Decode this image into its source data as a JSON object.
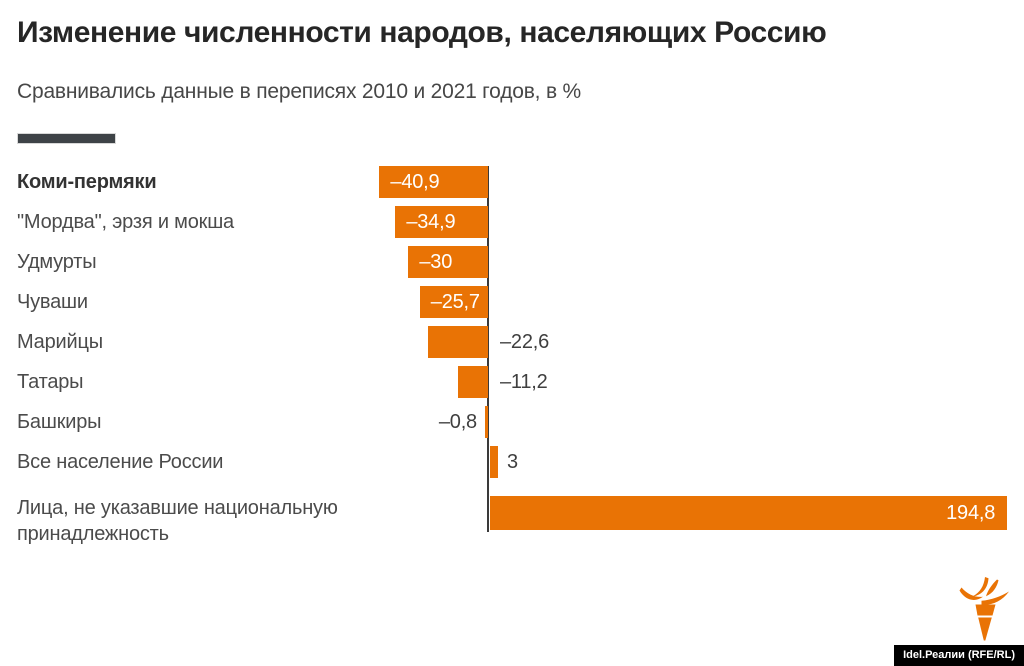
{
  "header": {
    "title": "Изменение численности народов, населяющих Россию",
    "subtitle": "Сравнивались данные в переписях 2010 и 2021 годов, в %"
  },
  "legend": {
    "swatch_color": "#3E4347"
  },
  "chart_data": {
    "type": "bar",
    "orientation": "horizontal",
    "unit": "%",
    "title": "Изменение численности народов, населяющих Россию",
    "subtitle": "Сравнивались данные в переписях 2010 и 2021 годов, в %",
    "categories": [
      "Коми-пермяки",
      "\"Мордва\", эрзя и мокша",
      "Удмурты",
      "Чуваши",
      "Марийцы",
      "Татары",
      "Башкиры",
      "Все население России",
      "Лица, не указавшие национальную принадлежность"
    ],
    "values": [
      -40.9,
      -34.9,
      -30,
      -25.7,
      -22.6,
      -11.2,
      -0.8,
      3,
      194.8
    ],
    "value_labels": [
      "–40,9",
      "–34,9",
      "–30",
      "–25,7",
      "–22,6",
      "–11,2",
      "–0,8",
      "3",
      "194,8"
    ],
    "label_positions": [
      "inside",
      "inside",
      "inside",
      "inside",
      "axis-right",
      "axis-right",
      "bar-left",
      "bar-right",
      "inside"
    ],
    "highlighted_category": "Коми-пермяки",
    "bar_color": "#E97305",
    "axis_color": "#3A3A3A",
    "grid": false,
    "xlim": [
      -45,
      200
    ]
  },
  "footer": {
    "attribution": "Idel.Реалии (RFE/RL)"
  },
  "colors": {
    "accent_orange": "#E97305",
    "title_text": "#262626",
    "label_text": "#4B4B4B",
    "footer_bg": "#000000",
    "footer_text": "#FFFFFF"
  }
}
